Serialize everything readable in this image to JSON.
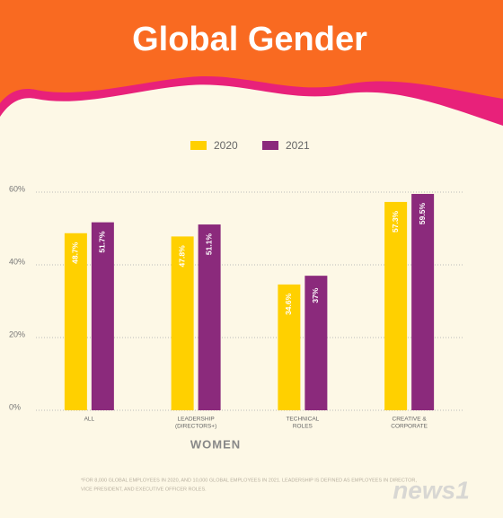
{
  "chart_data": {
    "type": "bar",
    "title": "Global Gender",
    "categories": [
      [
        "ALL"
      ],
      [
        "LEADERSHIP",
        "(DIRECTORS+)"
      ],
      [
        "TECHNICAL",
        "ROLES"
      ],
      [
        "CREATIVE &",
        "CORPORATE"
      ]
    ],
    "series": [
      {
        "name": "2020",
        "color": "#ffd000",
        "values": [
          48.7,
          47.8,
          34.6,
          57.3
        ],
        "value_labels": [
          "48.7%",
          "47.8%",
          "34.6%",
          "57.3%"
        ]
      },
      {
        "name": "2021",
        "color": "#8b2a7c",
        "values": [
          51.7,
          51.1,
          37,
          59.5
        ],
        "value_labels": [
          "51.7%",
          "51.1%",
          "37%",
          "59.5%"
        ]
      }
    ],
    "xlabel": "WOMEN",
    "ylim": [
      0,
      60
    ],
    "yticks": [
      {
        "value": 0,
        "label": "0%"
      },
      {
        "value": 20,
        "label": "20%"
      },
      {
        "value": 40,
        "label": "40%"
      },
      {
        "value": 60,
        "label": "60%"
      }
    ],
    "grid": true
  },
  "footnote": [
    "*FOR 8,000 GLOBAL EMPLOYEES IN 2020, AND 10,000 GLOBAL EMPLOYEES IN 2021. LEADERSHIP IS DEFINED AS EMPLOYEES IN DIRECTOR,",
    "VICE PRESIDENT, AND EXECUTIVE OFFICER ROLES."
  ],
  "watermark": "news1"
}
